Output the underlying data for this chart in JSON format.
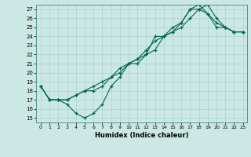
{
  "bg_color": "#cce8e4",
  "grid_color": "#aad4cc",
  "line_color": "#006655",
  "xlim": [
    -0.5,
    23.5
  ],
  "ylim": [
    14.5,
    27.5
  ],
  "xticks": [
    0,
    1,
    2,
    3,
    4,
    5,
    6,
    7,
    8,
    9,
    10,
    11,
    12,
    13,
    14,
    15,
    16,
    17,
    18,
    19,
    20,
    21,
    22,
    23
  ],
  "yticks": [
    15,
    16,
    17,
    18,
    19,
    20,
    21,
    22,
    23,
    24,
    25,
    26,
    27
  ],
  "xlabel": "Humidex (Indice chaleur)",
  "line1_x": [
    0,
    1,
    2,
    3,
    4,
    5,
    6,
    7,
    8,
    9,
    10,
    11,
    12,
    13,
    14,
    15,
    16,
    17,
    18,
    19,
    20,
    21,
    22,
    23
  ],
  "line1_y": [
    18.5,
    17.0,
    17.0,
    16.5,
    15.5,
    15.0,
    15.5,
    16.5,
    18.5,
    19.5,
    21.0,
    21.5,
    22.0,
    24.0,
    24.0,
    25.0,
    25.5,
    27.0,
    27.0,
    26.5,
    25.0,
    25.0,
    24.5,
    24.5
  ],
  "line2_x": [
    0,
    1,
    2,
    3,
    4,
    5,
    6,
    7,
    8,
    9,
    10,
    11,
    12,
    13,
    14,
    15,
    16,
    17,
    18,
    19,
    20,
    21,
    22,
    23
  ],
  "line2_y": [
    18.5,
    17.0,
    17.0,
    17.0,
    17.5,
    18.0,
    18.5,
    19.0,
    19.5,
    20.5,
    21.0,
    21.5,
    22.5,
    23.5,
    24.0,
    24.5,
    25.5,
    27.0,
    27.5,
    26.5,
    25.5,
    25.0,
    24.5,
    24.5
  ],
  "line3_x": [
    0,
    1,
    2,
    3,
    4,
    5,
    6,
    7,
    8,
    9,
    10,
    11,
    12,
    13,
    14,
    15,
    16,
    17,
    18,
    19,
    20,
    21,
    22,
    23
  ],
  "line3_y": [
    18.5,
    17.0,
    17.0,
    17.0,
    17.5,
    18.0,
    18.0,
    18.5,
    19.5,
    20.0,
    21.0,
    21.0,
    22.0,
    22.5,
    24.0,
    24.5,
    25.0,
    26.0,
    27.0,
    27.5,
    26.0,
    25.0,
    24.5,
    24.5
  ]
}
